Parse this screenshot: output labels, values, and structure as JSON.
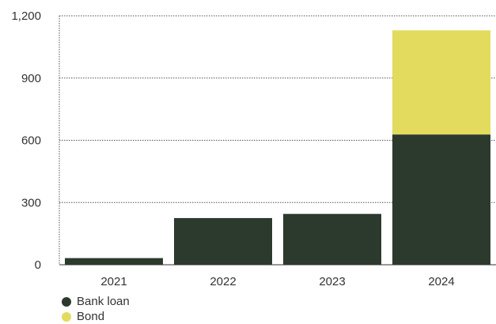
{
  "chart_data": {
    "type": "bar",
    "stacked": true,
    "categories": [
      "2021",
      "2022",
      "2023",
      "2024"
    ],
    "series": [
      {
        "name": "Bank loan",
        "color": "#2c3a2e",
        "values": [
          32,
          225,
          245,
          628
        ]
      },
      {
        "name": "Bond",
        "color": "#e2db5e",
        "values": [
          0,
          0,
          0,
          502
        ]
      }
    ],
    "yticks": [
      "0",
      "300",
      "600",
      "900",
      "1,200"
    ],
    "ylim": [
      0,
      1200
    ],
    "grid": true,
    "legend_position": "bottom-left"
  }
}
